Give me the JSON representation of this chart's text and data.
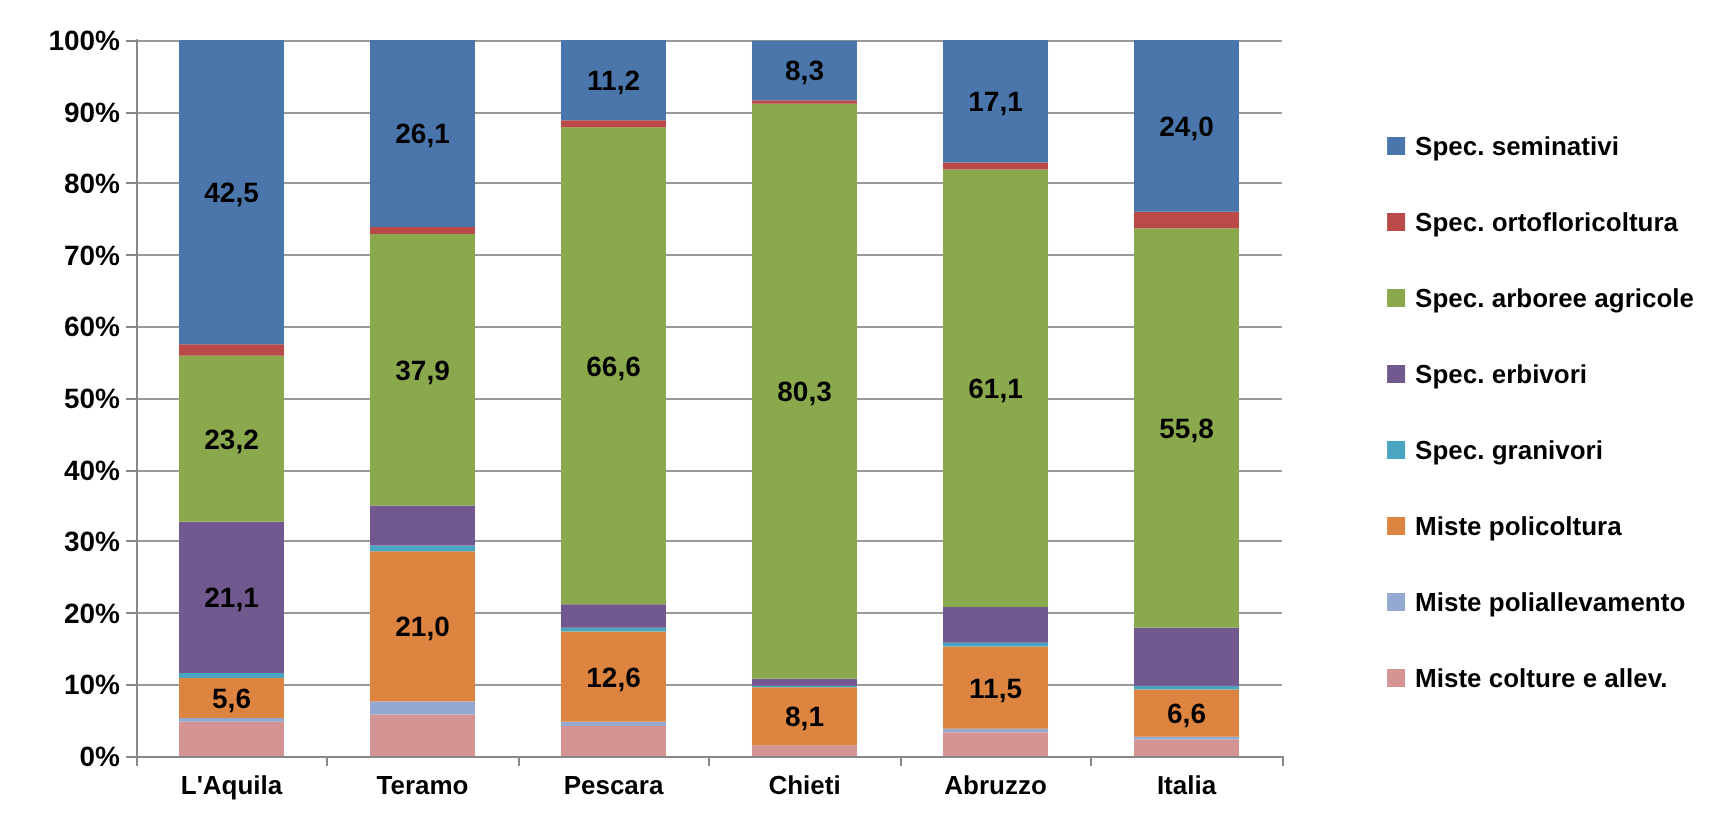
{
  "chart_data": {
    "type": "bar",
    "stacked": true,
    "categories": [
      "L'Aquila",
      "Teramo",
      "Pescara",
      "Chieti",
      "Abruzzo",
      "Italia"
    ],
    "ylim": [
      0,
      100
    ],
    "yticks": [
      {
        "value": 0,
        "label": "0%"
      },
      {
        "value": 10,
        "label": "10%"
      },
      {
        "value": 20,
        "label": "20%"
      },
      {
        "value": 30,
        "label": "30%"
      },
      {
        "value": 40,
        "label": "40%"
      },
      {
        "value": 50,
        "label": "50%"
      },
      {
        "value": 60,
        "label": "60%"
      },
      {
        "value": 70,
        "label": "70%"
      },
      {
        "value": 80,
        "label": "80%"
      },
      {
        "value": 90,
        "label": "90%"
      },
      {
        "value": 100,
        "label": "100%"
      }
    ],
    "grid": "y",
    "legend": "right",
    "series": [
      {
        "name": "Miste colture e allev.",
        "color": "#d49493",
        "values": [
          4.8,
          5.8,
          4.2,
          1.5,
          3.3,
          2.3
        ]
      },
      {
        "name": "Miste poliallevamento",
        "color": "#93a9d2",
        "values": [
          0.5,
          1.8,
          0.6,
          null,
          0.5,
          0.4
        ]
      },
      {
        "name": "Miste policoltura",
        "color": "#dd8440",
        "values": [
          5.6,
          21.0,
          12.6,
          8.1,
          11.5,
          6.6
        ],
        "value_labels": [
          "5,6",
          "21,0",
          "12,6",
          "8,1",
          "11,5",
          "6,6"
        ]
      },
      {
        "name": "Spec. granivori",
        "color": "#4aa5c1",
        "values": [
          0.7,
          0.8,
          0.5,
          0.2,
          0.5,
          0.5
        ]
      },
      {
        "name": "Spec. erbivori",
        "color": "#71588f",
        "values": [
          21.1,
          5.6,
          3.3,
          1.0,
          5.0,
          8.1
        ],
        "value_labels": [
          "21,1",
          null,
          null,
          null,
          null,
          null
        ]
      },
      {
        "name": "Spec. arboree agricole",
        "color": "#8aa84c",
        "values": [
          23.2,
          37.9,
          66.6,
          80.3,
          61.1,
          55.8
        ],
        "value_labels": [
          "23,2",
          "37,9",
          "66,6",
          "80,3",
          "61,1",
          "55,8"
        ]
      },
      {
        "name": "Spec. ortofloricoltura",
        "color": "#b94a48",
        "values": [
          1.6,
          1.0,
          1.0,
          0.5,
          1.0,
          2.3
        ]
      },
      {
        "name": "Spec. seminativi",
        "color": "#4a76ac",
        "values": [
          42.5,
          26.1,
          11.2,
          8.3,
          17.1,
          24.0
        ],
        "value_labels": [
          "42,5",
          "26,1",
          "11,2",
          "8,3",
          "17,1",
          "24,0"
        ]
      }
    ]
  }
}
